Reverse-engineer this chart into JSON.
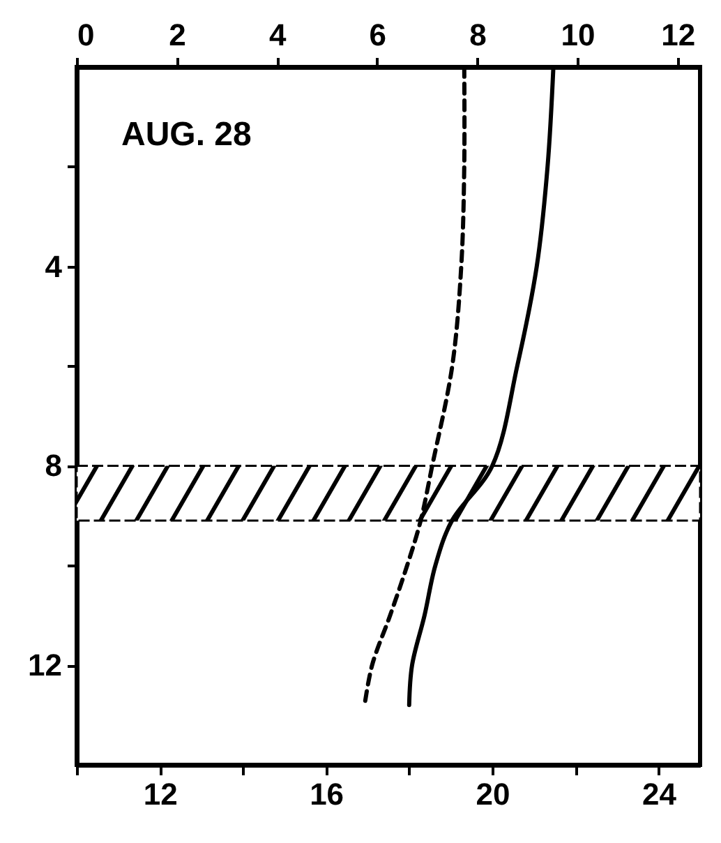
{
  "chart_data": {
    "type": "line",
    "annotations": [
      "AUG. 28"
    ],
    "xlim": [
      10,
      25
    ],
    "xticks": [
      {
        "value": 10,
        "label": null
      },
      12,
      {
        "value": 14,
        "label": null
      },
      16,
      {
        "value": 18,
        "label": null
      },
      20,
      {
        "value": 22,
        "label": null
      },
      24
    ],
    "x2lim": [
      0,
      12.45
    ],
    "x2ticks": [
      0,
      2,
      4,
      6,
      8,
      10,
      12
    ],
    "ylim": [
      14,
      0
    ],
    "yticks": [
      {
        "value": 2,
        "label": null
      },
      4,
      {
        "value": 6,
        "label": null
      },
      8,
      {
        "value": 10,
        "label": null
      },
      12
    ],
    "bands": [
      {
        "axis": "y",
        "from": 8,
        "to": 9.1
      }
    ],
    "series": [
      {
        "color": "#000000",
        "line_style": "dashed",
        "axis": "x2",
        "x": [
          7.74,
          7.74,
          7.68,
          7.5,
          7.1,
          6.87,
          6.6,
          6.26,
          5.9,
          5.75
        ],
        "values": [
          0,
          2,
          4,
          6,
          8,
          9.1,
          10,
          11,
          12,
          12.8
        ]
      },
      {
        "color": "#000000",
        "line_style": "solid",
        "x": [
          21.47,
          21.33,
          21.07,
          20.6,
          20.0,
          19.03,
          18.63,
          18.37,
          18.07,
          18.0
        ],
        "values": [
          0,
          2,
          4,
          6,
          8,
          9.1,
          10,
          11,
          12,
          12.8
        ]
      }
    ],
    "grid": false
  }
}
